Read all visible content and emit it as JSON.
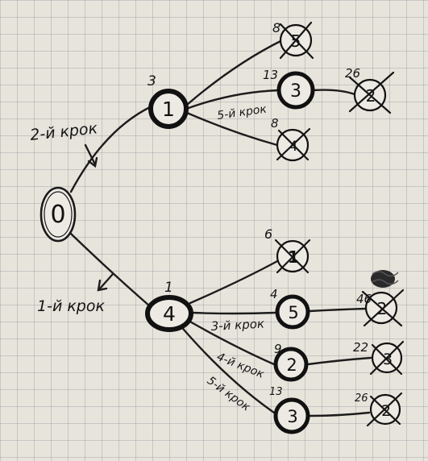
{
  "diagram": {
    "nodes": {
      "root": {
        "label": "0"
      },
      "b1": {
        "label": "1",
        "cost": "3"
      },
      "b4": {
        "label": "4",
        "cost": "1"
      },
      "b1_5": {
        "label": "5",
        "cost": "8",
        "crossed": true
      },
      "b1_3": {
        "label": "3",
        "cost": "13"
      },
      "b1_4": {
        "label": "4",
        "cost": "8",
        "crossed": true
      },
      "b1_3_2": {
        "label": "2",
        "cost": "26",
        "crossed": true
      },
      "b4_1": {
        "label": "1",
        "cost": "6",
        "crossed": true
      },
      "b4_5": {
        "label": "5",
        "cost": "4"
      },
      "b4_2": {
        "label": "2",
        "cost": "9"
      },
      "b4_3": {
        "label": "3",
        "cost": "13"
      },
      "b4_5_2": {
        "label": "2",
        "cost": "46",
        "crossed": true
      },
      "b4_2_3": {
        "label": "3",
        "cost": "22",
        "crossed": true
      },
      "b4_3_2": {
        "label": "2",
        "cost": "26",
        "crossed": true
      }
    },
    "step_labels": {
      "step1": "1-й крок",
      "step2": "2-й крок",
      "step3": "3-й крок",
      "step4": "4-й крок",
      "step5": "5-й крок",
      "step_upper": "5-й крок"
    }
  }
}
